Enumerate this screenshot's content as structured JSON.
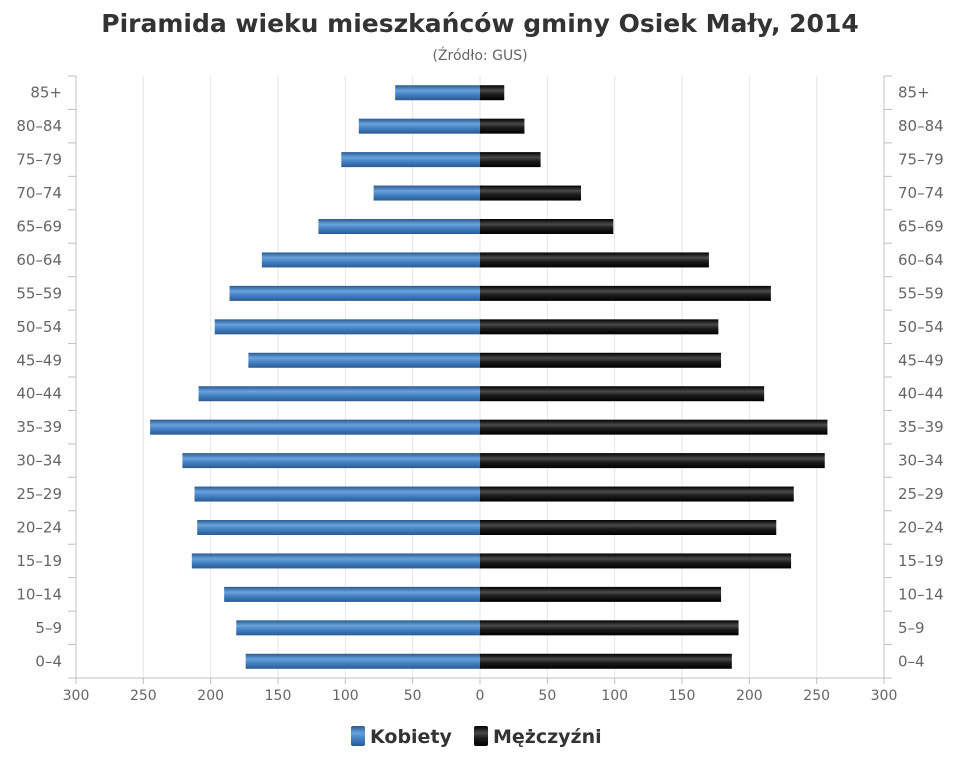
{
  "chart_data": {
    "type": "bar",
    "orientation": "horizontal",
    "subtype": "population-pyramid",
    "title": "Piramida wieku mieszkańców gminy Osiek Mały, 2014",
    "subtitle": "(Źródło: GUS)",
    "categories": [
      "85+",
      "80–84",
      "75–79",
      "70–74",
      "65–69",
      "60–64",
      "55–59",
      "50–54",
      "45–49",
      "40–44",
      "35–39",
      "30–34",
      "25–29",
      "20–24",
      "15–19",
      "10–14",
      "5–9",
      "0–4"
    ],
    "series": [
      {
        "name": "Kobiety",
        "side": "left",
        "color": "#3a75b5",
        "values": [
          63,
          90,
          103,
          79,
          120,
          162,
          186,
          197,
          172,
          209,
          245,
          221,
          212,
          210,
          214,
          190,
          181,
          174
        ]
      },
      {
        "name": "Mężczyźni",
        "side": "right",
        "color": "#111111",
        "values": [
          18,
          33,
          45,
          75,
          99,
          170,
          216,
          177,
          179,
          211,
          258,
          256,
          233,
          220,
          231,
          179,
          192,
          187
        ]
      }
    ],
    "xlim": [
      -300,
      300
    ],
    "x_ticks": [
      "300",
      "250",
      "200",
      "150",
      "100",
      "50",
      "0",
      "50",
      "100",
      "150",
      "200",
      "250",
      "300"
    ],
    "grid": true,
    "legend_position": "bottom-center",
    "category_labels_on_both_sides": true
  }
}
